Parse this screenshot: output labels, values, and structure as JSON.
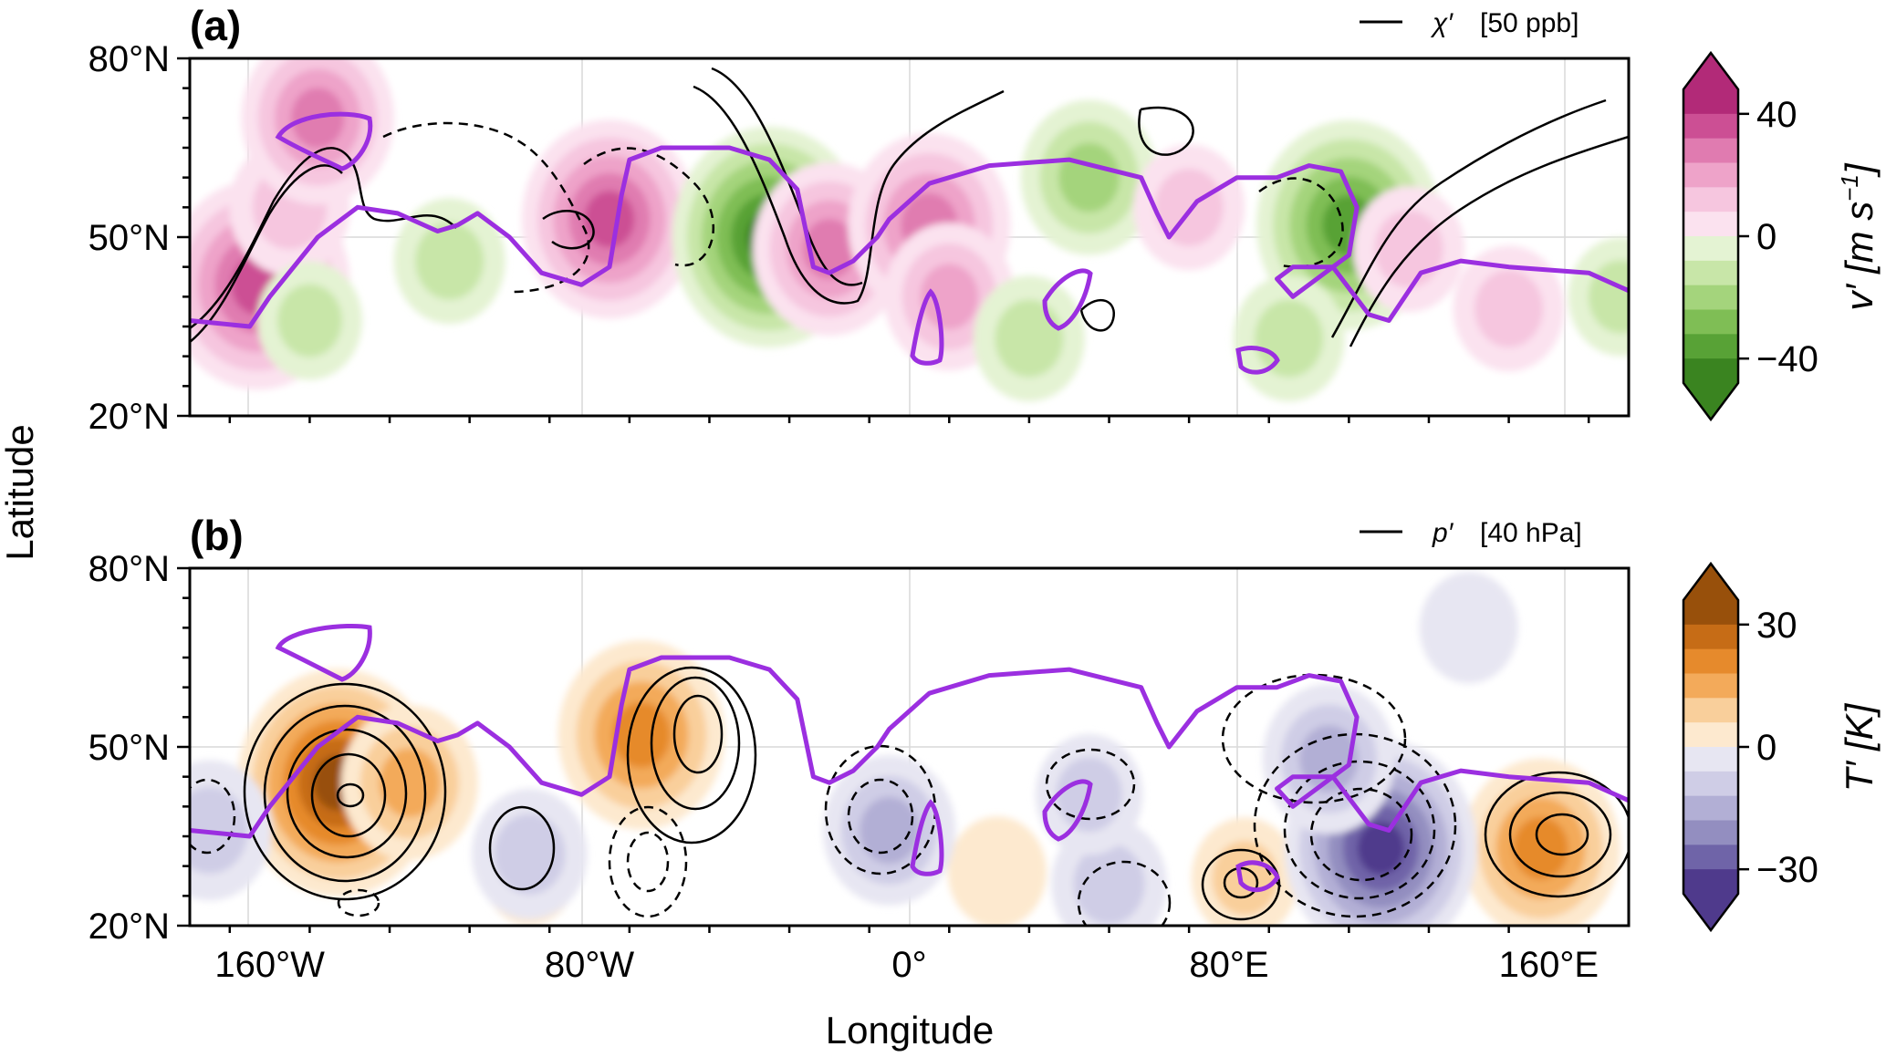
{
  "colors": {
    "jet_contour": "#9b2fe0",
    "grid": "#d9d9d9",
    "pos_v": [
      "#fbe2ef",
      "#f6c6df",
      "#eea3c9",
      "#e07bb0",
      "#cc4f94",
      "#b22a78"
    ],
    "neg_v": [
      "#e4f3d3",
      "#c8e6a8",
      "#a4d47c",
      "#7fbe55",
      "#58a236",
      "#3a8420"
    ],
    "pos_T": [
      "#fde9cf",
      "#f9cf9b",
      "#f3aa5a",
      "#e68a2c",
      "#c66c16",
      "#98500b"
    ],
    "neg_T": [
      "#e7e6f2",
      "#cfcde6",
      "#b2afd5",
      "#938ec0",
      "#6f64a8",
      "#4f3a8c"
    ]
  },
  "shared_axes": {
    "xlabel": "Longitude",
    "ylabel": "Latitude"
  },
  "panels": [
    {
      "tag": "(a)",
      "legend_symbol": "χ′",
      "legend_value": "[50 ppb]",
      "cbar_label": "v′ [m s",
      "cbar_label_exp": "−1",
      "cbar_label_close": "]",
      "cbar_ticks": [
        "40",
        "0",
        "−40"
      ]
    },
    {
      "tag": "(b)",
      "legend_symbol": "p′",
      "legend_value": "[40 hPa]",
      "cbar_label": "T′ [K]",
      "cbar_ticks": [
        "30",
        "0",
        "−30"
      ]
    }
  ],
  "chart_data": [
    {
      "type": "contour-map",
      "panel": "(a)",
      "field": "v′ [m s⁻¹]",
      "contour_field": "χ′ [50 ppb]",
      "xlim": [
        -180,
        180
      ],
      "ylim": [
        20,
        80
      ],
      "x_ticks": [
        -160,
        -80,
        0,
        80,
        160
      ],
      "x_tick_labels": [
        "160°W",
        "80°W",
        "0°",
        "80°E",
        "160°E"
      ],
      "y_ticks": [
        20,
        50,
        80
      ],
      "y_tick_labels": [
        "20°N",
        "50°N",
        "80°N"
      ],
      "colorbar_range": [
        -40,
        40
      ],
      "shading_features": [
        {
          "lon": -163,
          "lat": 42,
          "value": 35
        },
        {
          "lon": -155,
          "lat": 55,
          "value": 15
        },
        {
          "lon": -148,
          "lat": 70,
          "value": 25
        },
        {
          "lon": -75,
          "lat": 53,
          "value": 32
        },
        {
          "lon": -35,
          "lat": 50,
          "value": -38
        },
        {
          "lon": -20,
          "lat": 48,
          "value": 25
        },
        {
          "lon": 5,
          "lat": 52,
          "value": 28
        },
        {
          "lon": 10,
          "lat": 40,
          "value": 18
        },
        {
          "lon": 45,
          "lat": 60,
          "value": -20
        },
        {
          "lon": 70,
          "lat": 55,
          "value": 12
        },
        {
          "lon": 110,
          "lat": 52,
          "value": -35
        },
        {
          "lon": 125,
          "lat": 48,
          "value": 12
        },
        {
          "lon": 150,
          "lat": 38,
          "value": 12
        },
        {
          "lon": -150,
          "lat": 36,
          "value": -10
        },
        {
          "lon": -115,
          "lat": 46,
          "value": -12
        },
        {
          "lon": 30,
          "lat": 33,
          "value": -12
        },
        {
          "lon": 95,
          "lat": 33,
          "value": -12
        },
        {
          "lon": 178,
          "lat": 40,
          "value": -10
        }
      ],
      "jet_contour": [
        [
          -180,
          36
        ],
        [
          -165,
          35
        ],
        [
          -160,
          40
        ],
        [
          -148,
          50
        ],
        [
          -138,
          55
        ],
        [
          -128,
          54
        ],
        [
          -118,
          51
        ],
        [
          -113,
          52
        ],
        [
          -108,
          54
        ],
        [
          -100,
          50
        ],
        [
          -92,
          44
        ],
        [
          -82,
          42
        ],
        [
          -75,
          45
        ],
        [
          -72,
          57
        ],
        [
          -70,
          63
        ],
        [
          -62,
          65
        ],
        [
          -45,
          65
        ],
        [
          -35,
          63
        ],
        [
          -28,
          58
        ],
        [
          -24,
          45
        ],
        [
          -20,
          44
        ],
        [
          -14,
          46
        ],
        [
          -8,
          50
        ],
        [
          -5,
          53
        ],
        [
          5,
          59
        ],
        [
          20,
          62
        ],
        [
          40,
          63
        ],
        [
          58,
          60
        ],
        [
          62,
          54
        ],
        [
          65,
          50
        ],
        [
          72,
          56
        ],
        [
          82,
          60
        ],
        [
          92,
          60
        ],
        [
          100,
          62
        ],
        [
          108,
          61
        ],
        [
          112,
          55
        ],
        [
          110,
          47
        ],
        [
          102,
          43
        ],
        [
          96,
          40
        ],
        [
          92,
          43
        ],
        [
          96,
          45
        ],
        [
          106,
          45
        ],
        [
          115,
          37
        ],
        [
          120,
          36
        ],
        [
          128,
          44
        ],
        [
          138,
          46
        ],
        [
          150,
          45
        ],
        [
          170,
          44
        ],
        [
          180,
          41
        ]
      ]
    },
    {
      "type": "contour-map",
      "panel": "(b)",
      "field": "T′ [K]",
      "contour_field": "p′ [40 hPa]",
      "xlim": [
        -180,
        180
      ],
      "ylim": [
        20,
        80
      ],
      "x_ticks": [
        -160,
        -80,
        0,
        80,
        160
      ],
      "x_tick_labels": [
        "160°W",
        "80°W",
        "0°",
        "80°E",
        "160°E"
      ],
      "y_ticks": [
        20,
        50,
        80
      ],
      "y_tick_labels": [
        "20°N",
        "50°N",
        "80°N"
      ],
      "colorbar_range": [
        -30,
        30
      ],
      "shading_features": [
        {
          "lon": -143,
          "lat": 44,
          "value": 30
        },
        {
          "lon": -125,
          "lat": 44,
          "value": 15
        },
        {
          "lon": -67,
          "lat": 52,
          "value": 22
        },
        {
          "lon": 158,
          "lat": 33,
          "value": 20
        },
        {
          "lon": 22,
          "lat": 29,
          "value": 6
        },
        {
          "lon": 84,
          "lat": 28,
          "value": 8
        },
        {
          "lon": -95,
          "lat": 29,
          "value": 5
        },
        {
          "lon": 118,
          "lat": 33,
          "value": -28
        },
        {
          "lon": 105,
          "lat": 48,
          "value": -14
        },
        {
          "lon": -5,
          "lat": 36,
          "value": -14
        },
        {
          "lon": -95,
          "lat": 32,
          "value": -10
        },
        {
          "lon": 50,
          "lat": 27,
          "value": -10
        },
        {
          "lon": 45,
          "lat": 42,
          "value": -8
        },
        {
          "lon": -175,
          "lat": 36,
          "value": -12
        },
        {
          "lon": 140,
          "lat": 70,
          "value": -6
        }
      ],
      "jet_contour": [
        [
          -180,
          36
        ],
        [
          -165,
          35
        ],
        [
          -160,
          40
        ],
        [
          -148,
          50
        ],
        [
          -138,
          55
        ],
        [
          -128,
          54
        ],
        [
          -118,
          51
        ],
        [
          -113,
          52
        ],
        [
          -108,
          54
        ],
        [
          -100,
          50
        ],
        [
          -92,
          44
        ],
        [
          -82,
          42
        ],
        [
          -75,
          45
        ],
        [
          -72,
          57
        ],
        [
          -70,
          63
        ],
        [
          -62,
          65
        ],
        [
          -45,
          65
        ],
        [
          -35,
          63
        ],
        [
          -28,
          58
        ],
        [
          -24,
          45
        ],
        [
          -20,
          44
        ],
        [
          -14,
          46
        ],
        [
          -8,
          50
        ],
        [
          -5,
          53
        ],
        [
          5,
          59
        ],
        [
          20,
          62
        ],
        [
          40,
          63
        ],
        [
          58,
          60
        ],
        [
          62,
          54
        ],
        [
          65,
          50
        ],
        [
          72,
          56
        ],
        [
          82,
          60
        ],
        [
          92,
          60
        ],
        [
          100,
          62
        ],
        [
          108,
          61
        ],
        [
          112,
          55
        ],
        [
          110,
          47
        ],
        [
          102,
          43
        ],
        [
          96,
          40
        ],
        [
          92,
          43
        ],
        [
          96,
          45
        ],
        [
          106,
          45
        ],
        [
          115,
          37
        ],
        [
          120,
          36
        ],
        [
          128,
          44
        ],
        [
          138,
          46
        ],
        [
          150,
          45
        ],
        [
          170,
          44
        ],
        [
          180,
          41
        ]
      ]
    }
  ]
}
